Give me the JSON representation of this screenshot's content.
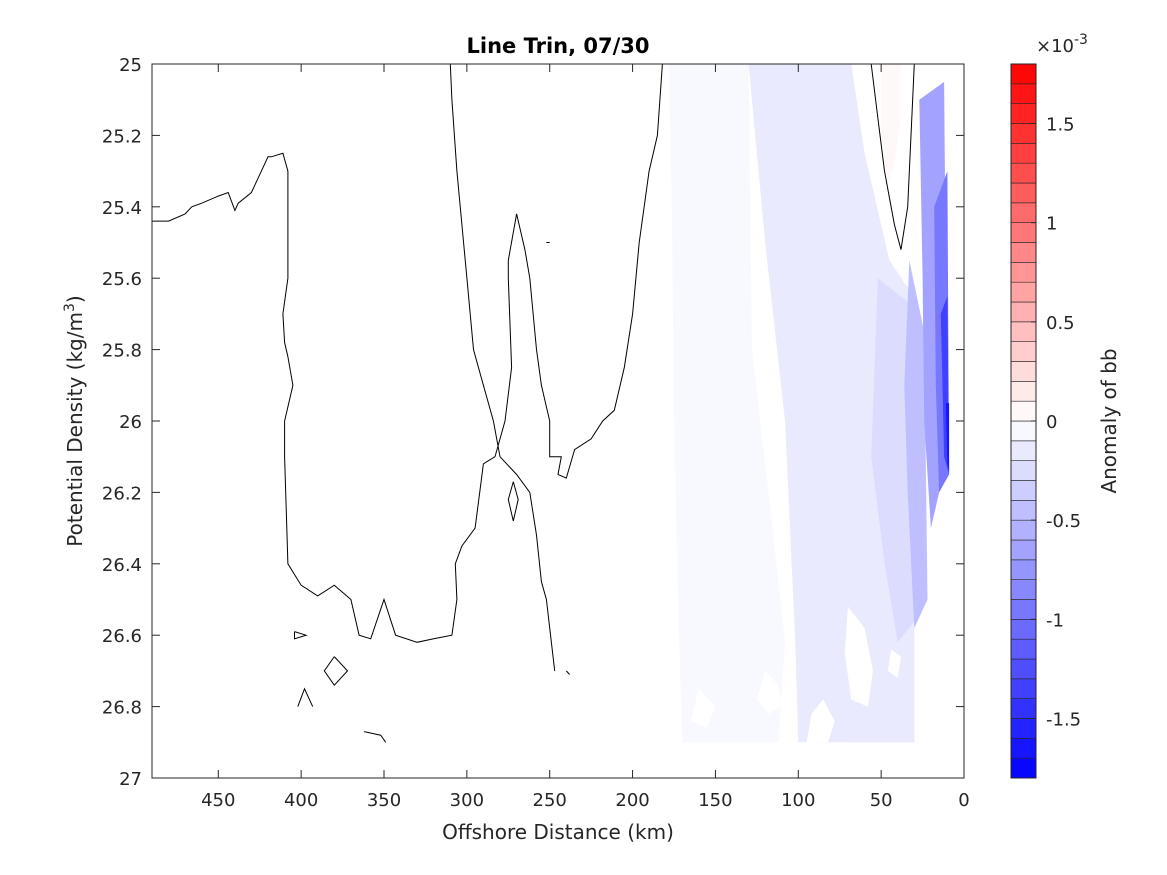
{
  "chart_data": {
    "type": "contour",
    "title": "Line Trin, 07/30",
    "xlabel": "Offshore Distance (km)",
    "ylabel_main": "Potential Density (kg/m",
    "ylabel_sup": "3",
    "ylabel_end": ")",
    "xlim": [
      490,
      0
    ],
    "x_reversed": true,
    "ylim": [
      25,
      27
    ],
    "y_reversed": true,
    "xticks": [
      450,
      400,
      350,
      300,
      250,
      200,
      150,
      100,
      50,
      0
    ],
    "yticks": [
      25,
      25.2,
      25.4,
      25.6,
      25.8,
      26,
      26.2,
      26.4,
      26.6,
      26.8,
      27
    ],
    "yticklabels": [
      "25",
      "25.2",
      "25.4",
      "25.6",
      "25.8",
      "26",
      "26.2",
      "26.4",
      "26.6",
      "26.8",
      "27"
    ],
    "grid": false,
    "colorbar": {
      "label": "Anomaly of bb",
      "exponent_base": "×10",
      "exponent_power": "-3",
      "range": [
        -1.8,
        1.8
      ],
      "levels": 36,
      "ticks": [
        -1.5,
        -1,
        -0.5,
        0,
        0.5,
        1,
        1.5
      ],
      "ticklabels": [
        "-1.5",
        "-1",
        "-0.5",
        "0",
        "0.5",
        "1",
        "1.5"
      ],
      "low_color": "#0000ff",
      "mid_color": "#ffffff",
      "high_color": "#ff0000"
    },
    "filled_regions": [
      {
        "value": -0.05,
        "points": [
          [
            178,
            25
          ],
          [
            130,
            25
          ],
          [
            128,
            25.8
          ],
          [
            118,
            26.2
          ],
          [
            108,
            26.62
          ],
          [
            112,
            26.9
          ],
          [
            170,
            26.9
          ],
          [
            172,
            26.6
          ],
          [
            175,
            26.0
          ],
          [
            176,
            25.5
          ]
        ]
      },
      {
        "value": -0.12,
        "points": [
          [
            130,
            25
          ],
          [
            68,
            25
          ],
          [
            60,
            25.25
          ],
          [
            45,
            25.55
          ],
          [
            35,
            25.62
          ],
          [
            30,
            25.9
          ],
          [
            30,
            26.9
          ],
          [
            100,
            26.9
          ],
          [
            102,
            26.6
          ],
          [
            108,
            26.0
          ],
          [
            120,
            25.5
          ],
          [
            126,
            25.2
          ]
        ]
      },
      {
        "value": -0.2,
        "points": [
          [
            92,
            25.3
          ],
          [
            60,
            25.3
          ],
          [
            45,
            25.58
          ],
          [
            30,
            25.64
          ],
          [
            30,
            26.9
          ],
          [
            70,
            26.9
          ],
          [
            78,
            26.6
          ],
          [
            82,
            26.1
          ],
          [
            88,
            25.8
          ]
        ]
      },
      {
        "value": -0.3,
        "points": [
          [
            52,
            25.6
          ],
          [
            30,
            25.68
          ],
          [
            28,
            26.55
          ],
          [
            40,
            26.62
          ],
          [
            48,
            26.4
          ],
          [
            56,
            26.1
          ]
        ]
      },
      {
        "value": -0.45,
        "points": [
          [
            33,
            25.55
          ],
          [
            24,
            25.75
          ],
          [
            22,
            26.5
          ],
          [
            30,
            26.58
          ],
          [
            34,
            26.2
          ],
          [
            36,
            25.9
          ]
        ]
      },
      {
        "value": -0.7,
        "points": [
          [
            27,
            25.1
          ],
          [
            12,
            25.05
          ],
          [
            10,
            26.1
          ],
          [
            20,
            26.3
          ],
          [
            24,
            26.0
          ],
          [
            25,
            25.6
          ]
        ]
      },
      {
        "value": -1.0,
        "points": [
          [
            18,
            25.4
          ],
          [
            10,
            25.3
          ],
          [
            9,
            26.15
          ],
          [
            15,
            26.2
          ],
          [
            17,
            25.9
          ]
        ]
      },
      {
        "value": -1.35,
        "points": [
          [
            14,
            25.7
          ],
          [
            10,
            25.65
          ],
          [
            9,
            26.15
          ],
          [
            12,
            26.1
          ],
          [
            13,
            25.9
          ]
        ]
      },
      {
        "value": -1.7,
        "points": [
          [
            11,
            25.95
          ],
          [
            9,
            25.95
          ],
          [
            9,
            26.14
          ],
          [
            10,
            26.12
          ]
        ]
      },
      {
        "value": 0.08,
        "points": [
          [
            50,
            25
          ],
          [
            38,
            25
          ],
          [
            38,
            25.15
          ],
          [
            42,
            25.28
          ],
          [
            46,
            25.34
          ],
          [
            50,
            25.2
          ]
        ]
      }
    ],
    "white_regions": [
      {
        "points": [
          [
            70,
            26.52
          ],
          [
            60,
            26.58
          ],
          [
            55,
            26.7
          ],
          [
            58,
            26.8
          ],
          [
            68,
            26.78
          ],
          [
            72,
            26.65
          ]
        ]
      },
      {
        "points": [
          [
            120,
            26.7
          ],
          [
            112,
            26.74
          ],
          [
            110,
            26.8
          ],
          [
            118,
            26.82
          ],
          [
            125,
            26.78
          ]
        ]
      },
      {
        "points": [
          [
            85,
            26.78
          ],
          [
            78,
            26.84
          ],
          [
            82,
            26.9
          ],
          [
            95,
            26.9
          ],
          [
            92,
            26.82
          ]
        ]
      },
      {
        "points": [
          [
            160,
            26.75
          ],
          [
            150,
            26.8
          ],
          [
            155,
            26.86
          ],
          [
            165,
            26.84
          ]
        ]
      },
      {
        "points": [
          [
            44,
            26.64
          ],
          [
            38,
            26.66
          ],
          [
            40,
            26.72
          ],
          [
            46,
            26.7
          ]
        ]
      }
    ],
    "contour_lines": [
      [
        [
          490,
          25.44
        ],
        [
          480,
          25.44
        ],
        [
          470,
          25.42
        ],
        [
          466,
          25.4
        ],
        [
          460,
          25.39
        ],
        [
          450,
          25.37
        ],
        [
          444,
          25.36
        ],
        [
          440,
          25.41
        ],
        [
          438,
          25.39
        ],
        [
          430,
          25.36
        ],
        [
          425,
          25.31
        ],
        [
          420,
          25.26
        ],
        [
          418,
          25.26
        ],
        [
          411,
          25.25
        ],
        [
          408,
          25.3
        ],
        [
          408,
          25.6
        ],
        [
          411,
          25.7
        ],
        [
          410,
          25.78
        ],
        [
          408,
          25.82
        ],
        [
          405,
          25.9
        ],
        [
          410,
          26.0
        ],
        [
          410,
          26.1
        ],
        [
          408,
          26.4
        ],
        [
          400,
          26.46
        ],
        [
          390,
          26.49
        ],
        [
          380,
          26.46
        ],
        [
          370,
          26.5
        ],
        [
          365,
          26.6
        ],
        [
          358,
          26.61
        ],
        [
          350,
          26.5
        ],
        [
          343,
          26.6
        ],
        [
          330,
          26.62
        ],
        [
          320,
          26.61
        ],
        [
          309,
          26.6
        ],
        [
          306,
          26.5
        ],
        [
          307,
          26.4
        ],
        [
          303,
          26.35
        ],
        [
          295,
          26.3
        ],
        [
          290,
          26.12
        ],
        [
          283,
          26.1
        ],
        [
          277,
          26.0
        ],
        [
          273,
          25.85
        ],
        [
          275,
          25.6
        ],
        [
          275,
          25.55
        ],
        [
          270,
          25.42
        ],
        [
          265,
          25.52
        ],
        [
          262,
          25.6
        ],
        [
          258,
          25.8
        ],
        [
          255,
          25.9
        ],
        [
          250,
          26.0
        ],
        [
          250,
          26.1
        ],
        [
          243,
          26.1
        ],
        [
          245,
          26.15
        ],
        [
          240,
          26.16
        ],
        [
          235,
          26.08
        ],
        [
          225,
          26.05
        ],
        [
          218,
          26.0
        ],
        [
          211,
          25.97
        ],
        [
          205,
          25.85
        ],
        [
          200,
          25.7
        ],
        [
          196,
          25.5
        ],
        [
          190,
          25.3
        ],
        [
          185,
          25.2
        ],
        [
          182,
          25.0
        ]
      ],
      [
        [
          310,
          25
        ],
        [
          309,
          25.1
        ],
        [
          306,
          25.3
        ],
        [
          300,
          25.6
        ],
        [
          296,
          25.8
        ],
        [
          290,
          25.9
        ],
        [
          284,
          26.0
        ],
        [
          280,
          26.1
        ],
        [
          270,
          26.15
        ],
        [
          262,
          26.2
        ],
        [
          258,
          26.32
        ],
        [
          255,
          26.45
        ],
        [
          252,
          26.5
        ],
        [
          247,
          26.7
        ]
      ],
      [
        [
          56,
          25
        ],
        [
          52,
          25.15
        ],
        [
          48,
          25.3
        ],
        [
          42,
          25.45
        ],
        [
          38,
          25.52
        ],
        [
          34,
          25.4
        ],
        [
          30,
          25.0
        ]
      ],
      [
        [
          404,
          26.59
        ],
        [
          397,
          26.6
        ],
        [
          404,
          26.61
        ],
        [
          404,
          26.59
        ]
      ],
      [
        [
          380,
          26.66
        ],
        [
          372,
          26.7
        ],
        [
          380,
          26.74
        ],
        [
          386,
          26.7
        ],
        [
          380,
          26.66
        ]
      ],
      [
        [
          402,
          26.8
        ],
        [
          398,
          26.75
        ],
        [
          393,
          26.8
        ]
      ],
      [
        [
          362,
          26.87
        ],
        [
          352,
          26.88
        ],
        [
          349,
          26.9
        ]
      ],
      [
        [
          272,
          26.17
        ],
        [
          269,
          26.22
        ],
        [
          272,
          26.28
        ],
        [
          275,
          26.22
        ],
        [
          272,
          26.17
        ]
      ],
      [
        [
          252,
          25.5
        ],
        [
          250,
          25.5
        ]
      ],
      [
        [
          240,
          26.7
        ],
        [
          238,
          26.71
        ]
      ]
    ]
  }
}
